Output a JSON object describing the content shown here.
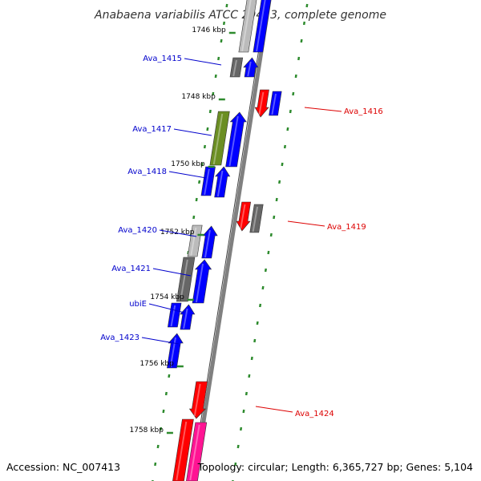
{
  "title": "Anabaena variabilis ATCC 29413, complete genome",
  "accession_text": "Accession: NC_007413",
  "topology_text": "Topology: circular; Length: 6,365,727 bp; Genes: 5,104",
  "colors": {
    "backbone": "#808080",
    "tick": "#2e8b2e",
    "forward_label": "#0000cc",
    "reverse_label": "#dd0000",
    "blue": "#0000ff",
    "red": "#ff0000",
    "dark_gray": "#666666",
    "light_gray": "#bbbbbb",
    "olive": "#6b8e23",
    "pink": "#ff1493"
  },
  "position_ticks": [
    {
      "label": "1746 kbp"
    },
    {
      "label": "1748 kbp"
    },
    {
      "label": "1750 kbp"
    },
    {
      "label": "1752 kbp"
    },
    {
      "label": "1754 kbp"
    },
    {
      "label": "1756 kbp"
    },
    {
      "label": "1758 kbp"
    }
  ],
  "gene_labels": [
    {
      "name": "Ava_1415",
      "strand": "forward"
    },
    {
      "name": "Ava_1416",
      "strand": "reverse"
    },
    {
      "name": "Ava_1417",
      "strand": "forward"
    },
    {
      "name": "Ava_1418",
      "strand": "forward"
    },
    {
      "name": "Ava_1419",
      "strand": "reverse"
    },
    {
      "name": "Ava_1420",
      "strand": "forward"
    },
    {
      "name": "Ava_1421",
      "strand": "forward"
    },
    {
      "name": "ubiE",
      "strand": "forward"
    },
    {
      "name": "Ava_1423",
      "strand": "forward"
    },
    {
      "name": "Ava_1424",
      "strand": "reverse"
    }
  ],
  "features": [
    {
      "track": "inner",
      "color": "light_gray",
      "arrow": false
    },
    {
      "track": "inner",
      "color": "blue",
      "arrow": false
    },
    {
      "track": "inner",
      "color": "dark_gray",
      "arrow": false
    },
    {
      "track": "inner",
      "color": "blue",
      "arrow": true
    },
    {
      "track": "outer",
      "color": "red",
      "arrow": true
    },
    {
      "track": "outer",
      "color": "blue",
      "arrow": false
    },
    {
      "track": "inner",
      "color": "olive",
      "arrow": false
    },
    {
      "track": "inner",
      "color": "blue",
      "arrow": true
    },
    {
      "track": "inner",
      "color": "blue",
      "arrow": false
    },
    {
      "track": "inner",
      "color": "blue",
      "arrow": true
    },
    {
      "track": "outer",
      "color": "red",
      "arrow": true
    },
    {
      "track": "outer",
      "color": "dark_gray",
      "arrow": false
    },
    {
      "track": "inner",
      "color": "light_gray",
      "arrow": false
    },
    {
      "track": "inner",
      "color": "blue",
      "arrow": true
    },
    {
      "track": "inner",
      "color": "dark_gray",
      "arrow": false
    },
    {
      "track": "inner",
      "color": "blue",
      "arrow": true
    },
    {
      "track": "inner",
      "color": "blue",
      "arrow": false
    },
    {
      "track": "inner",
      "color": "blue",
      "arrow": true
    },
    {
      "track": "inner",
      "color": "blue",
      "arrow": true
    },
    {
      "track": "outer",
      "color": "red",
      "arrow": true
    },
    {
      "track": "inner",
      "color": "red",
      "arrow": false
    },
    {
      "track": "inner",
      "color": "pink",
      "arrow": false
    }
  ]
}
